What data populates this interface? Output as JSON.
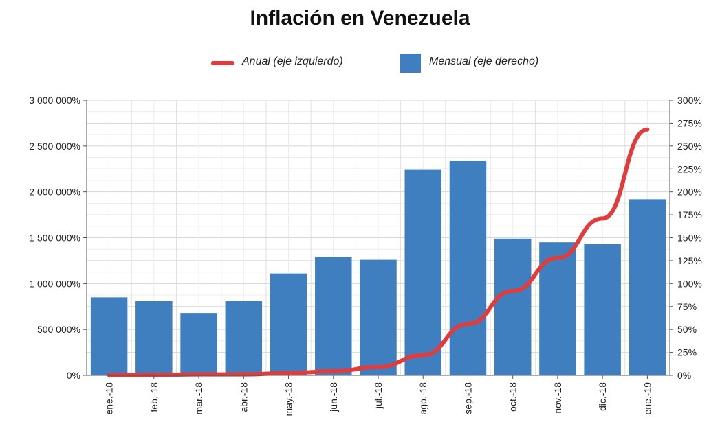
{
  "chart_data": {
    "type": "bar",
    "title": "Inflación en Venezuela",
    "categories": [
      "ene.-18",
      "feb.-18",
      "mar.-18",
      "abr.-18",
      "may.-18",
      "jun.-18",
      "jul.-18",
      "ago.-18",
      "sep.-18",
      "oct.-18",
      "nov.-18",
      "dic.-18",
      "ene.-19"
    ],
    "series": [
      {
        "name": "Mensual (eje derecho)",
        "type": "bar",
        "axis": "right",
        "color": "#3f7fbf",
        "values": [
          85,
          81,
          68,
          81,
          111,
          129,
          126,
          224,
          234,
          149,
          145,
          143,
          192
        ]
      },
      {
        "name": "Anual (eje izquierdo)",
        "type": "line",
        "axis": "left",
        "color": "#e03c3c",
        "values": [
          2500,
          5000,
          10000,
          10000,
          25000,
          45000,
          90000,
          220000,
          560000,
          920000,
          1280000,
          1710000,
          2680000
        ]
      }
    ],
    "y_left": {
      "ylim": [
        0,
        3000000
      ],
      "ticks": [
        0,
        500000,
        1000000,
        1500000,
        2000000,
        2500000,
        3000000
      ],
      "tick_labels": [
        "0%",
        "500 000%",
        "1 000 000%",
        "1 500 000%",
        "2 000 000%",
        "2 500 000%",
        "3 000 000%"
      ]
    },
    "y_right": {
      "ylim": [
        0,
        300
      ],
      "ticks": [
        0,
        25,
        50,
        75,
        100,
        125,
        150,
        175,
        200,
        225,
        250,
        275,
        300
      ],
      "tick_labels": [
        "0%",
        "25%",
        "50%",
        "75%",
        "100%",
        "125%",
        "150%",
        "175%",
        "200%",
        "225%",
        "250%",
        "275%",
        "300%"
      ]
    },
    "grid": true,
    "legend_position": "top-center"
  }
}
